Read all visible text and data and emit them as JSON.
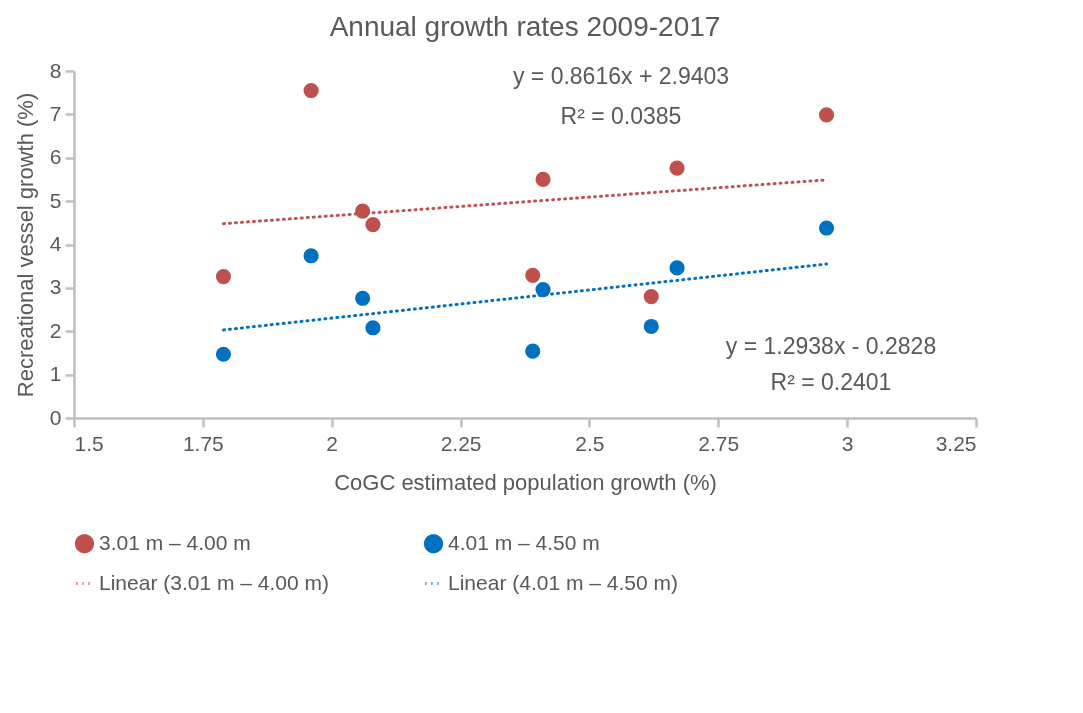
{
  "chart_data": {
    "type": "scatter",
    "title": "Annual growth rates 2009-2017",
    "xlabel": "CoGC estimated population growth    (%)",
    "ylabel": "Recreational vessel growth (%)",
    "xlim": [
      1.5,
      3.25
    ],
    "xticks": [
      1.5,
      1.75,
      2,
      2.25,
      2.5,
      2.75,
      3,
      3.25
    ],
    "ylim": [
      0,
      8
    ],
    "yticks": [
      0,
      1,
      2,
      3,
      4,
      5,
      6,
      7,
      8
    ],
    "grid": false,
    "legend": "bottom",
    "annotations": [
      "y = 0.8616x + 2.9403",
      "R² = 0.0385",
      "y = 1.2938x - 0.2828",
      "R² = 0.2401"
    ],
    "series": [
      {
        "name": "3.01 m – 4.00 m",
        "marker": "circle",
        "color": "#c0504d",
        "x": [
          1.79,
          1.96,
          2.06,
          2.08,
          2.39,
          2.41,
          2.62,
          2.67,
          2.96
        ],
        "values": [
          3.26,
          7.55,
          4.77,
          4.46,
          3.29,
          5.5,
          2.8,
          5.76,
          6.99
        ]
      },
      {
        "name": "4.01 m – 4.50 m",
        "marker": "circle",
        "color": "#0070c0",
        "x": [
          1.79,
          1.96,
          2.06,
          2.08,
          2.39,
          2.41,
          2.62,
          2.67,
          2.96
        ],
        "values": [
          1.47,
          3.74,
          2.76,
          2.08,
          1.54,
          2.96,
          2.11,
          3.46,
          4.38
        ]
      },
      {
        "name": "Linear (3.01 m – 4.00 m)",
        "type": "line",
        "marker": "none",
        "line_style": "dotted",
        "color": "#c0504d",
        "x": [
          1.79,
          2.96
        ],
        "values": [
          4.48,
          5.49
        ]
      },
      {
        "name": "Linear (4.01 m – 4.50 m)",
        "type": "line",
        "marker": "none",
        "line_style": "dotted",
        "color": "#0070c0",
        "x": [
          1.79,
          2.96
        ],
        "values": [
          2.03,
          3.55
        ]
      }
    ]
  }
}
